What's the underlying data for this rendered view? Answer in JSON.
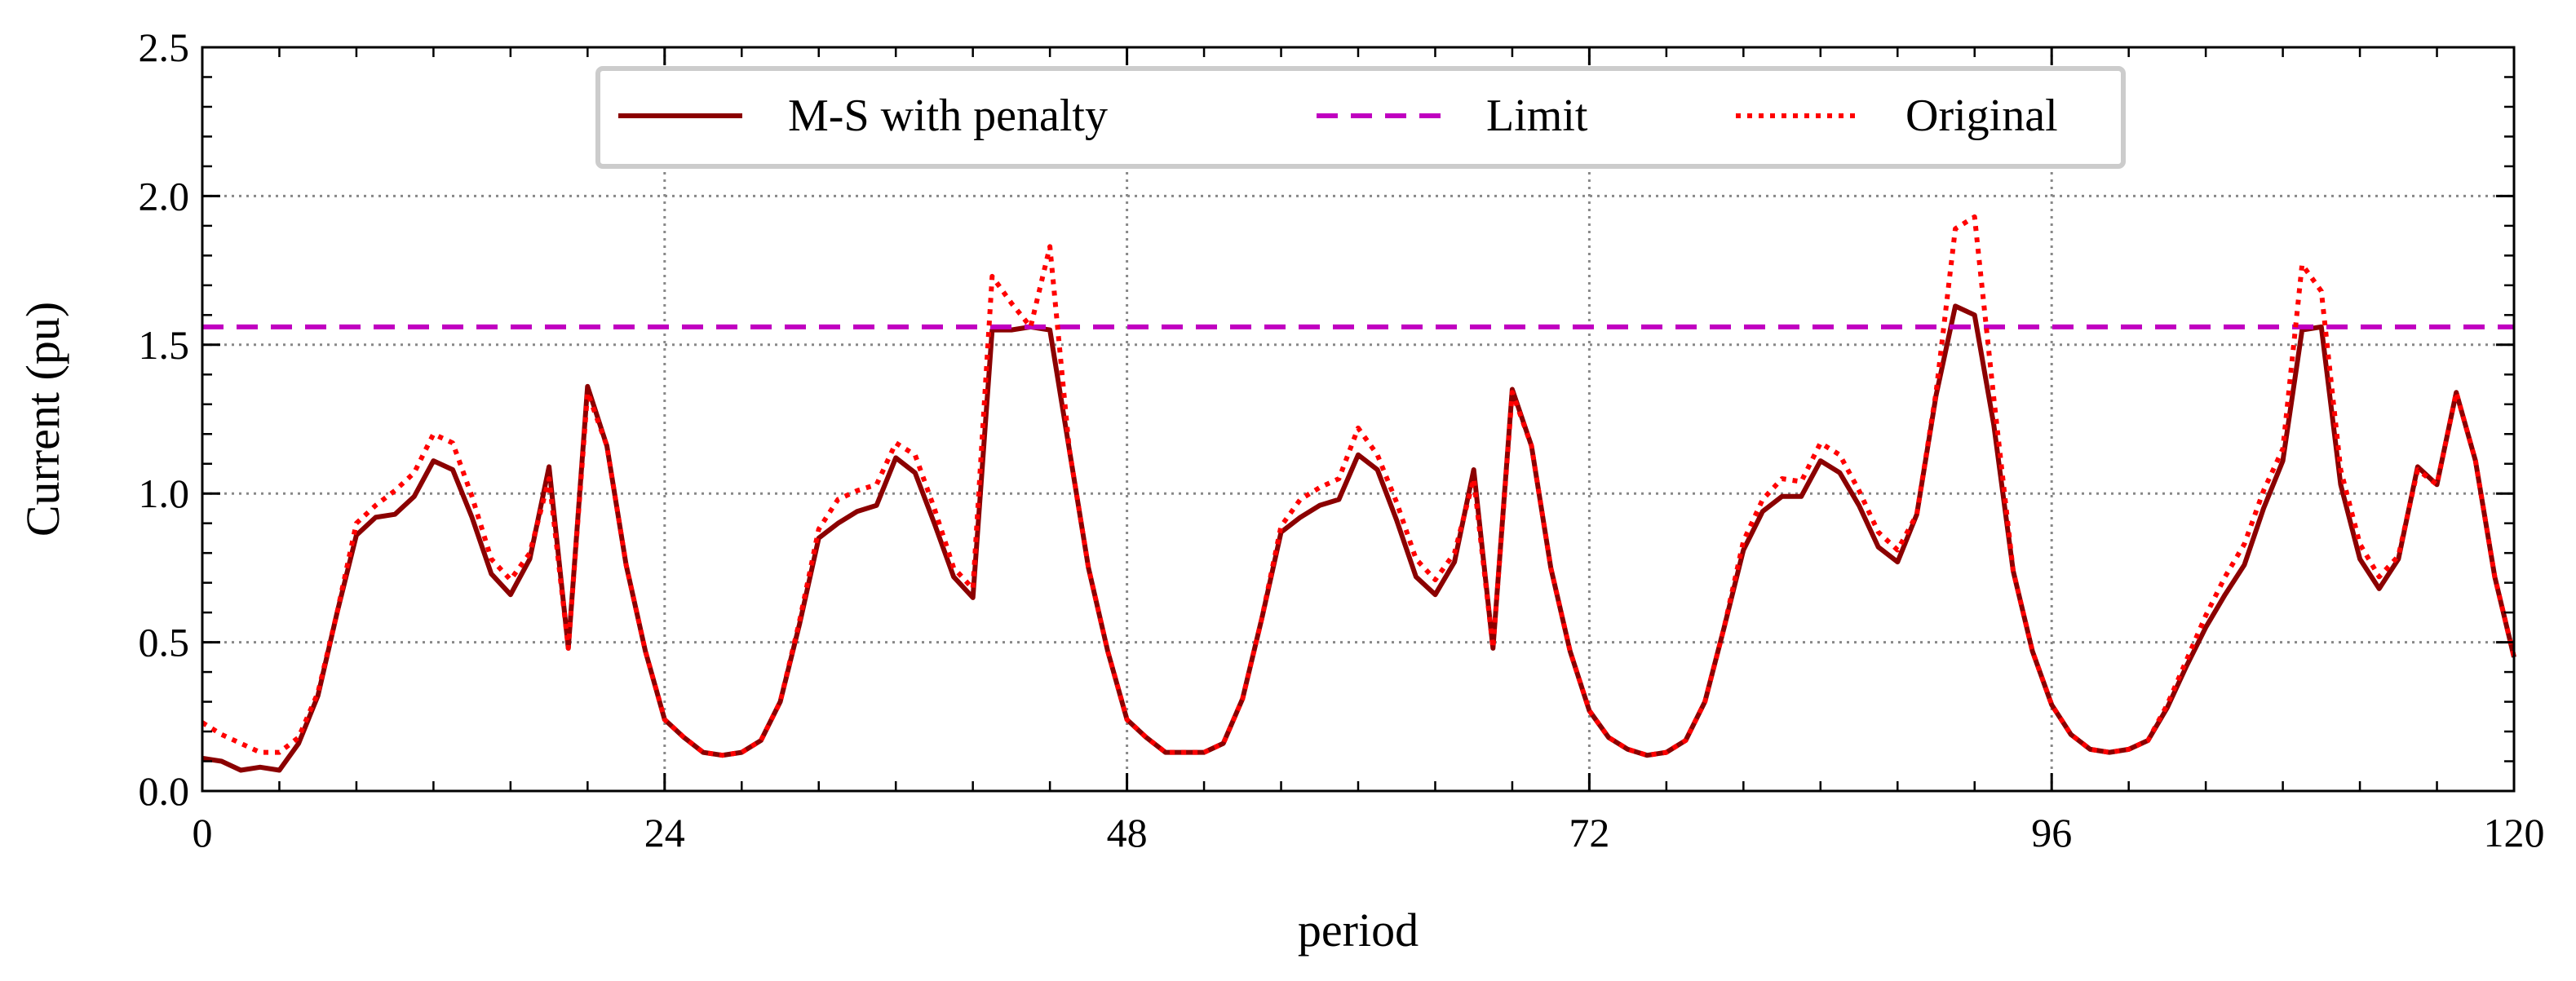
{
  "chart_data": {
    "type": "line",
    "xlabel": "period",
    "ylabel": "Current (pu)",
    "xlim": [
      0,
      120
    ],
    "ylim": [
      0,
      2.5
    ],
    "xticks": [
      0,
      24,
      48,
      72,
      96,
      120
    ],
    "yticks": [
      0.0,
      0.5,
      1.0,
      1.5,
      2.0,
      2.5
    ],
    "ytick_labels": [
      "0.0",
      "0.5",
      "1.0",
      "1.5",
      "2.0",
      "2.5"
    ],
    "grid": true,
    "legend_position": "top-center",
    "series": [
      {
        "name": "M-S with penalty",
        "color": "#8b0000",
        "style": "solid",
        "x": [
          0,
          1,
          2,
          3,
          4,
          5,
          6,
          7,
          8,
          9,
          10,
          11,
          12,
          13,
          14,
          15,
          16,
          17,
          18,
          19,
          20,
          21,
          22,
          23,
          24,
          25,
          26,
          27,
          28,
          29,
          30,
          31,
          32,
          33,
          34,
          35,
          36,
          37,
          38,
          39,
          40,
          41,
          42,
          43,
          44,
          45,
          46,
          47,
          48,
          49,
          50,
          51,
          52,
          53,
          54,
          55,
          56,
          57,
          58,
          59,
          60,
          61,
          62,
          63,
          64,
          65,
          66,
          67,
          68,
          69,
          70,
          71,
          72,
          73,
          74,
          75,
          76,
          77,
          78,
          79,
          80,
          81,
          82,
          83,
          84,
          85,
          86,
          87,
          88,
          89,
          90,
          91,
          92,
          93,
          94,
          95,
          96,
          97,
          98,
          99,
          100,
          101,
          102,
          103,
          104,
          105,
          106,
          107,
          108,
          109,
          110,
          111,
          112,
          113,
          114,
          115,
          116,
          117,
          118,
          119,
          120
        ],
        "y": [
          0.11,
          0.1,
          0.07,
          0.08,
          0.07,
          0.16,
          0.32,
          0.6,
          0.86,
          0.92,
          0.93,
          0.99,
          1.11,
          1.08,
          0.92,
          0.73,
          0.66,
          0.78,
          1.09,
          0.48,
          1.36,
          1.16,
          0.76,
          0.47,
          0.24,
          0.18,
          0.13,
          0.12,
          0.13,
          0.17,
          0.3,
          0.56,
          0.85,
          0.9,
          0.94,
          0.96,
          1.12,
          1.07,
          0.9,
          0.72,
          0.65,
          1.55,
          1.55,
          1.56,
          1.55,
          1.15,
          0.75,
          0.47,
          0.24,
          0.18,
          0.13,
          0.13,
          0.13,
          0.16,
          0.31,
          0.58,
          0.87,
          0.92,
          0.96,
          0.98,
          1.13,
          1.08,
          0.91,
          0.72,
          0.66,
          0.77,
          1.08,
          0.48,
          1.35,
          1.16,
          0.75,
          0.47,
          0.27,
          0.18,
          0.14,
          0.12,
          0.13,
          0.17,
          0.3,
          0.55,
          0.81,
          0.94,
          0.99,
          0.99,
          1.11,
          1.07,
          0.96,
          0.82,
          0.77,
          0.93,
          1.33,
          1.63,
          1.6,
          1.23,
          0.74,
          0.47,
          0.29,
          0.19,
          0.14,
          0.13,
          0.14,
          0.17,
          0.28,
          0.42,
          0.55,
          0.66,
          0.76,
          0.95,
          1.11,
          1.55,
          1.56,
          1.03,
          0.78,
          0.68,
          0.78,
          1.09,
          1.03,
          1.34,
          1.11,
          0.72,
          0.45
        ]
      },
      {
        "name": "Limit",
        "color": "#c000c0",
        "style": "dashed",
        "x": [
          0,
          120
        ],
        "y": [
          1.56,
          1.56
        ]
      },
      {
        "name": "Original",
        "color": "#ff0000",
        "style": "dotted",
        "x": [
          0,
          1,
          2,
          3,
          4,
          5,
          6,
          7,
          8,
          9,
          10,
          11,
          12,
          13,
          14,
          15,
          16,
          17,
          18,
          19,
          20,
          21,
          22,
          23,
          24,
          25,
          26,
          27,
          28,
          29,
          30,
          31,
          32,
          33,
          34,
          35,
          36,
          37,
          38,
          39,
          40,
          41,
          42,
          43,
          44,
          45,
          46,
          47,
          48,
          49,
          50,
          51,
          52,
          53,
          54,
          55,
          56,
          57,
          58,
          59,
          60,
          61,
          62,
          63,
          64,
          65,
          66,
          67,
          68,
          69,
          70,
          71,
          72,
          73,
          74,
          75,
          76,
          77,
          78,
          79,
          80,
          81,
          82,
          83,
          84,
          85,
          86,
          87,
          88,
          89,
          90,
          91,
          92,
          93,
          94,
          95,
          96,
          97,
          98,
          99,
          100,
          101,
          102,
          103,
          104,
          105,
          106,
          107,
          108,
          109,
          110,
          111,
          112,
          113,
          114,
          115,
          116,
          117,
          118,
          119,
          120
        ],
        "y": [
          0.23,
          0.19,
          0.16,
          0.13,
          0.13,
          0.18,
          0.33,
          0.6,
          0.9,
          0.96,
          1.01,
          1.07,
          1.2,
          1.17,
          0.99,
          0.78,
          0.71,
          0.8,
          1.05,
          0.48,
          1.34,
          1.16,
          0.76,
          0.47,
          0.24,
          0.18,
          0.13,
          0.12,
          0.13,
          0.17,
          0.3,
          0.57,
          0.88,
          0.98,
          1.01,
          1.03,
          1.17,
          1.13,
          0.95,
          0.75,
          0.68,
          1.73,
          1.64,
          1.56,
          1.83,
          1.15,
          0.75,
          0.47,
          0.24,
          0.18,
          0.13,
          0.13,
          0.13,
          0.16,
          0.31,
          0.58,
          0.89,
          0.98,
          1.02,
          1.05,
          1.22,
          1.13,
          0.97,
          0.78,
          0.71,
          0.8,
          1.05,
          0.48,
          1.34,
          1.16,
          0.75,
          0.47,
          0.27,
          0.18,
          0.14,
          0.12,
          0.13,
          0.17,
          0.3,
          0.55,
          0.84,
          0.98,
          1.05,
          1.04,
          1.17,
          1.13,
          1.01,
          0.87,
          0.81,
          0.93,
          1.34,
          1.89,
          1.93,
          1.32,
          0.74,
          0.47,
          0.29,
          0.19,
          0.14,
          0.13,
          0.14,
          0.17,
          0.29,
          0.44,
          0.59,
          0.72,
          0.83,
          1.01,
          1.15,
          1.77,
          1.68,
          1.08,
          0.83,
          0.72,
          0.79,
          1.08,
          1.03,
          1.34,
          1.11,
          0.72,
          0.45
        ]
      }
    ]
  }
}
